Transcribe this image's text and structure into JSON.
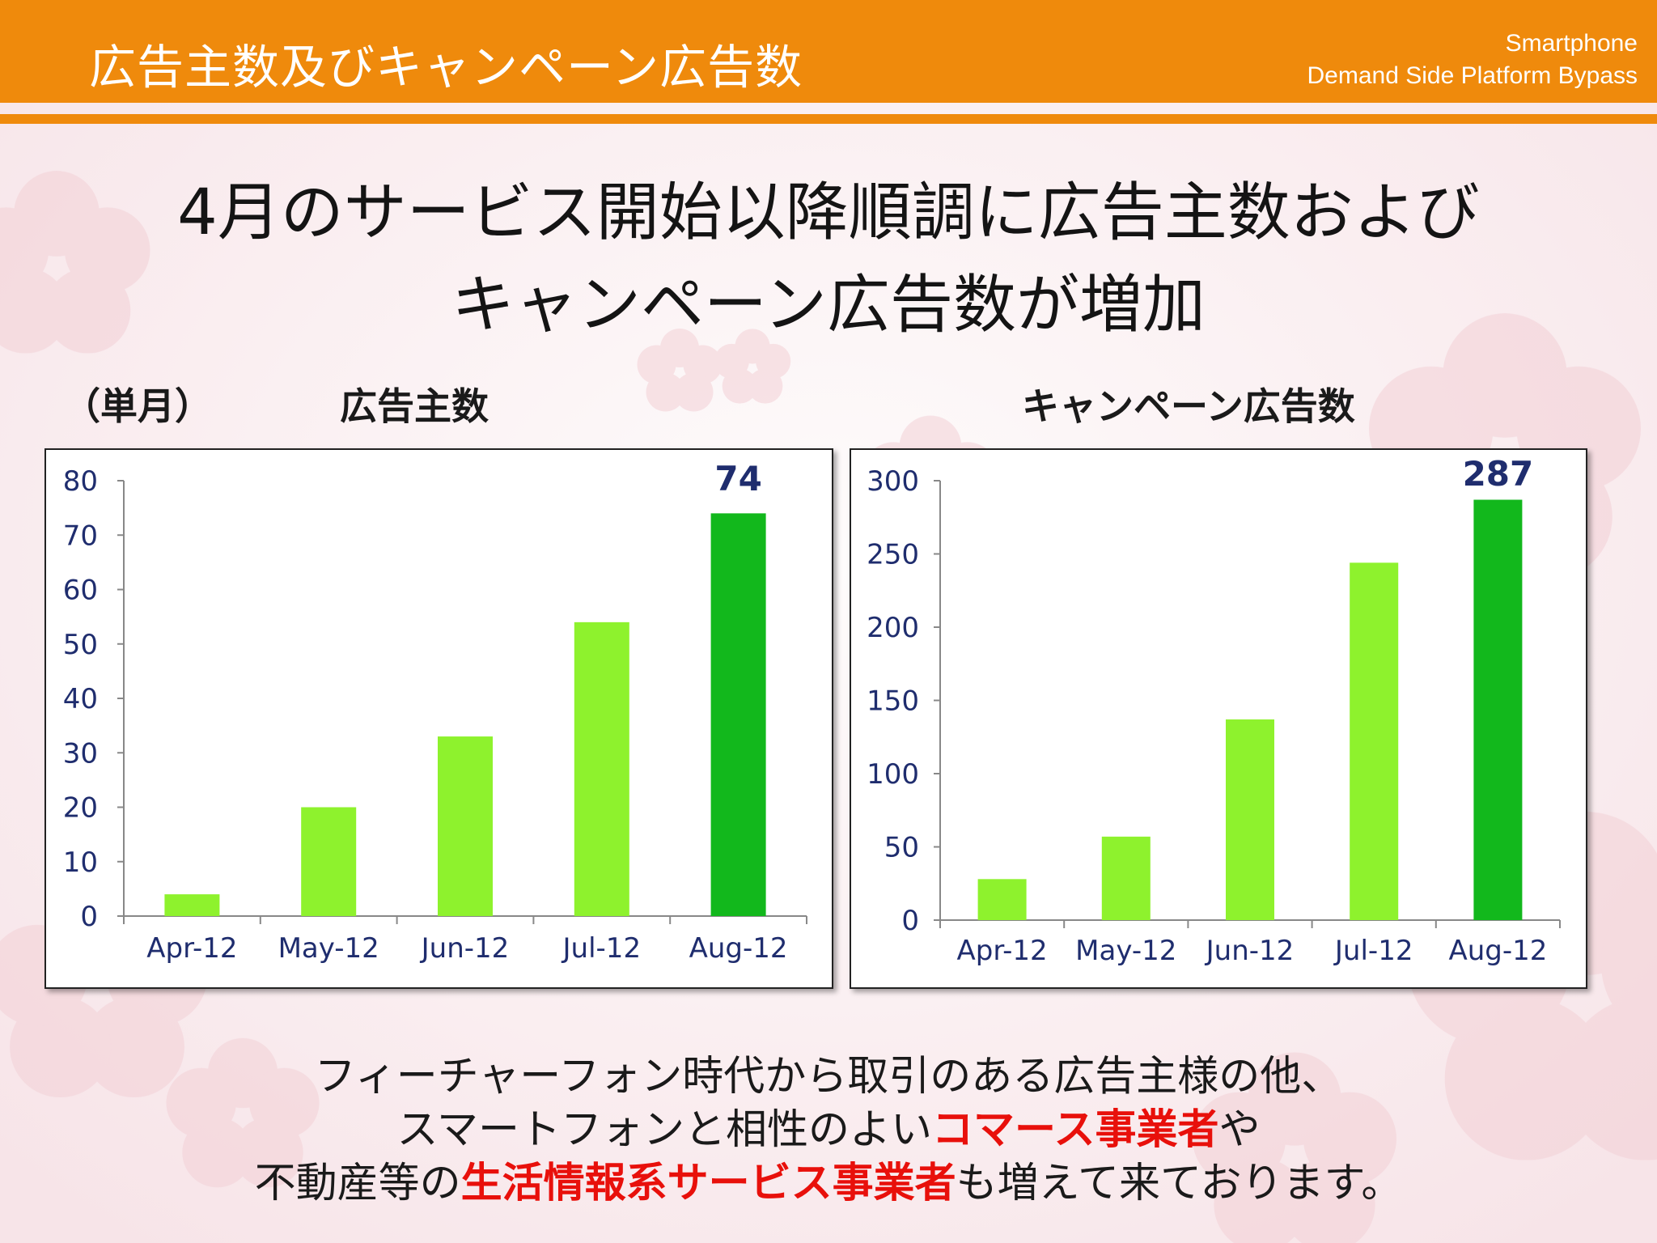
{
  "header": {
    "title": "広告主数及びキャンペーン広告数",
    "brand_line1": "Smartphone",
    "brand_line2": "Demand Side Platform Bypass"
  },
  "headline": {
    "line1": "4月のサービス開始以降順調に広告主数および",
    "line2": "キャンペーン広告数が増加"
  },
  "labels": {
    "period": "（単月）",
    "left_title": "広告主数",
    "right_title": "キャンペーン広告数"
  },
  "chart_data": [
    {
      "type": "bar",
      "title": "広告主数",
      "categories": [
        "Apr-12",
        "May-12",
        "Jun-12",
        "Jul-12",
        "Aug-12"
      ],
      "values": [
        4,
        20,
        33,
        54,
        74
      ],
      "ylim": [
        0,
        80
      ],
      "yticks": [
        0,
        10,
        20,
        30,
        40,
        50,
        60,
        70,
        80
      ],
      "data_label": "74",
      "highlight_index": 4,
      "colors": {
        "bar": "#8ef22d",
        "highlight": "#12b81c",
        "tick_text": "#1f2d6e"
      }
    },
    {
      "type": "bar",
      "title": "キャンペーン広告数",
      "categories": [
        "Apr-12",
        "May-12",
        "Jun-12",
        "Jul-12",
        "Aug-12"
      ],
      "values": [
        28,
        57,
        137,
        244,
        287
      ],
      "ylim": [
        0,
        300
      ],
      "yticks": [
        0,
        50,
        100,
        150,
        200,
        250,
        300
      ],
      "data_label": "287",
      "highlight_index": 4,
      "colors": {
        "bar": "#8ef22d",
        "highlight": "#12b81c",
        "tick_text": "#1f2d6e"
      }
    }
  ],
  "footer": {
    "line1": "フィーチャーフォン時代から取引のある広告主様の他、",
    "line2_pre": "スマートフォンと相性のよい",
    "line2_hl": "コマース事業者",
    "line2_post": "や",
    "line3_pre": "不動産等の",
    "line3_hl": "生活情報系サービス事業者",
    "line3_post": "も増えて来ております。"
  }
}
